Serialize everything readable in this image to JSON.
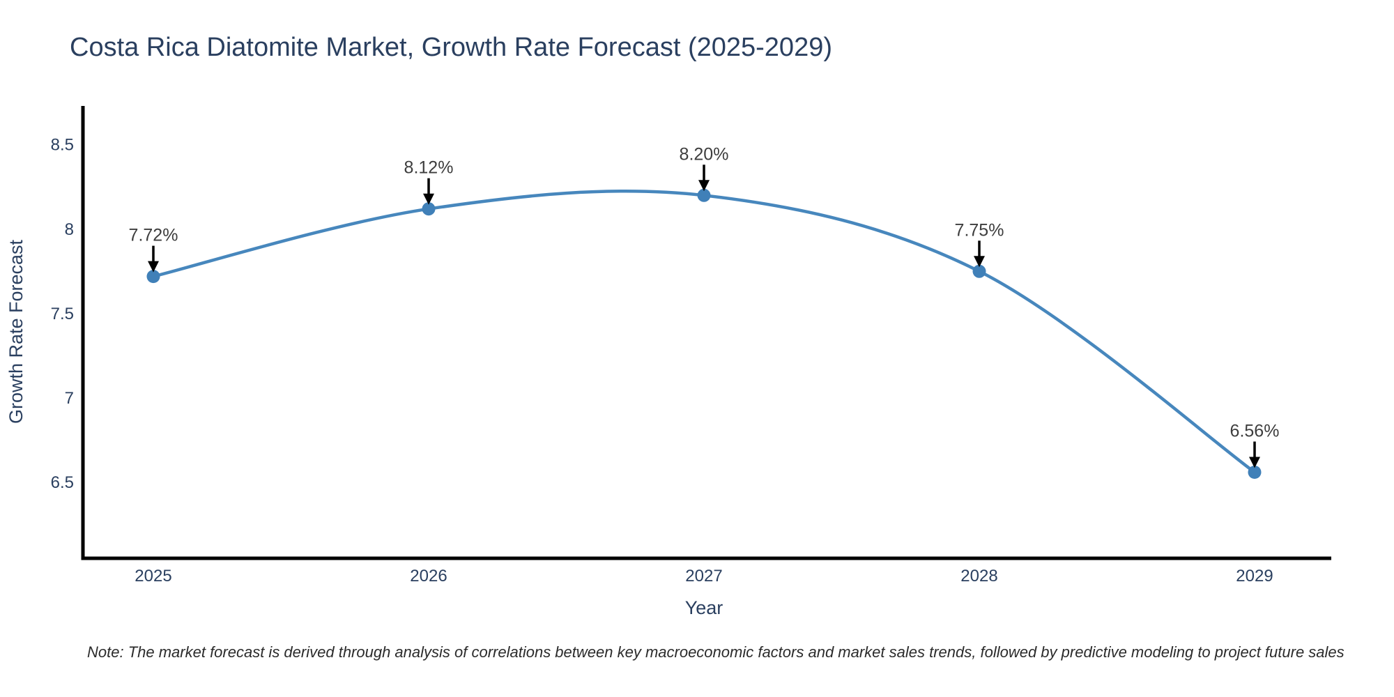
{
  "title": "Costa Rica Diatomite Market, Growth Rate Forecast (2025-2029)",
  "note": "Note: The market forecast is derived through analysis of correlations between key macroeconomic factors and market sales trends, followed by predictive modeling to project future sales",
  "chart_data": {
    "type": "line",
    "line_shape": "spline",
    "title": "Costa Rica Diatomite Market, Growth Rate Forecast (2025-2029)",
    "xlabel": "Year",
    "ylabel": "Growth Rate Forecast",
    "categories": [
      "2025",
      "2026",
      "2027",
      "2028",
      "2029"
    ],
    "x": [
      2025,
      2026,
      2027,
      2028,
      2029
    ],
    "values": [
      7.72,
      8.12,
      8.2,
      7.75,
      6.56
    ],
    "point_labels": [
      "7.72%",
      "8.12%",
      "8.20%",
      "7.75%",
      "6.56%"
    ],
    "yticks": [
      6.5,
      7,
      7.5,
      8,
      8.5
    ],
    "ytick_labels": [
      "6.5",
      "7",
      "7.5",
      "8",
      "8.5"
    ],
    "ylim": [
      6.05,
      8.73
    ],
    "grid": false,
    "legend": "none",
    "annotations_have_arrows": true,
    "colors": {
      "line": "#4787bd",
      "marker": "#4080b8",
      "axis": "#000000",
      "arrow": "#000000",
      "title_text": "#2a3f5f",
      "tick_text": "#2a3f5f",
      "annotation_text": "#3d3d3d",
      "note_text": "#2b2b2b",
      "background": "#ffffff"
    }
  }
}
